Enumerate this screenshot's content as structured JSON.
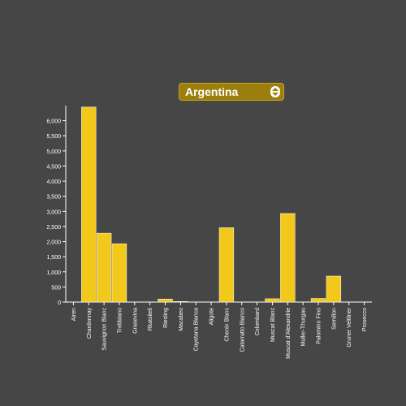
{
  "selector": {
    "label": "Argentina"
  },
  "colors": {
    "background": "#464646",
    "bar": "#f2c81a",
    "bar_stroke": "#ffffff",
    "axis": "#ffffff",
    "text": "#ffffff",
    "selector_bg": "#9c7e0c"
  },
  "chart_data": {
    "type": "bar",
    "title": "",
    "xlabel": "",
    "ylabel": "",
    "ylim": [
      0,
      6500
    ],
    "yticks": [
      0,
      500,
      1000,
      1500,
      2000,
      2500,
      3000,
      3500,
      4000,
      4500,
      5000,
      5500,
      6000
    ],
    "ytick_labels": [
      "0",
      "500",
      "1,000",
      "1,500",
      "2,000",
      "2,500",
      "3,000",
      "3,500",
      "4,000",
      "4,500",
      "5,000",
      "5,500",
      "6,000"
    ],
    "categories": [
      "Airen",
      "Chardonnay",
      "Sauvignon Blanc",
      "Trebbiano",
      "Grasevina",
      "Rkatsiteli",
      "Riesling",
      "Macabeo",
      "Cayetana Blanca",
      "Aligote",
      "Chenin Blanc",
      "Catarratto Bianco",
      "Colombard",
      "Muscat Blanc",
      "Muscat d'Alexandrie",
      "Muller-Thurgau",
      "Palomino Fino",
      "Semillon",
      "Gruner Veltliner",
      "Prosecco"
    ],
    "values": [
      0,
      6450,
      2280,
      1930,
      0,
      0,
      100,
      20,
      0,
      0,
      2460,
      0,
      0,
      110,
      2930,
      0,
      120,
      860,
      0,
      0
    ],
    "grid": false,
    "legend": "none"
  }
}
